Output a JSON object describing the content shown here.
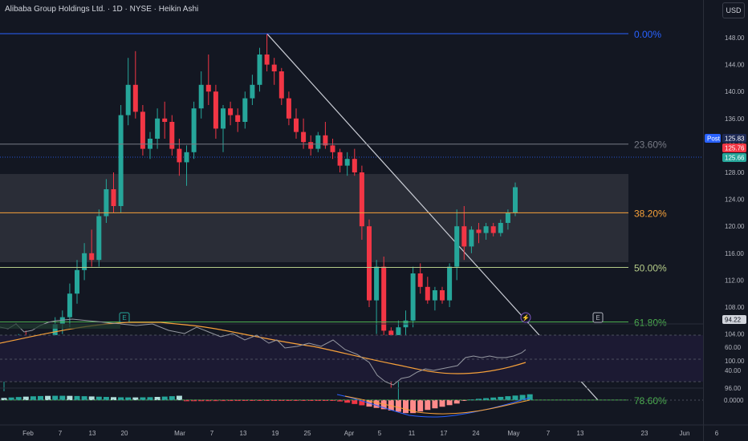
{
  "header": {
    "title": "Alibaba Group Holdings Ltd. · 1D · NYSE · Heikin Ashi",
    "currency": "USD"
  },
  "price_axis": {
    "ticks": [
      "148.00",
      "144.00",
      "140.00",
      "136.00",
      "132.00",
      "128.00",
      "124.00",
      "120.00",
      "116.00",
      "112.00",
      "108.00",
      "104.00",
      "100.00",
      "96.00"
    ],
    "badges": {
      "post_label": "Post",
      "post_value": "125.83",
      "last_value": "125.76",
      "close_value": "125.66",
      "low_value": "94.22"
    }
  },
  "fib_levels": [
    {
      "label": "0.00%",
      "price": 148.6,
      "color": "#2962ff"
    },
    {
      "label": "23.60%",
      "price": 132.2,
      "color": "#787b86"
    },
    {
      "label": "38.20%",
      "price": 122.0,
      "color": "#f7a13a"
    },
    {
      "label": "50.00%",
      "price": 113.9,
      "color": "#b5cc88"
    },
    {
      "label": "61.80%",
      "price": 105.8,
      "color": "#4caf50"
    },
    {
      "label": "78.60%",
      "price": 94.2,
      "color": "#4caf50"
    }
  ],
  "rsi_axis": {
    "ticks": [
      "60.00",
      "40.00"
    ]
  },
  "macd_axis": {
    "ticks": [
      "0.0000"
    ]
  },
  "time_axis": {
    "labels": [
      "Feb",
      "7",
      "13",
      "20",
      "Mar",
      "7",
      "13",
      "19",
      "25",
      "Apr",
      "5",
      "11",
      "17",
      "24",
      "May",
      "7",
      "13",
      "23",
      "Jun",
      "6"
    ]
  },
  "markers": {
    "earnings_1": "E",
    "earnings_2": "E"
  },
  "colors": {
    "up": "#26a69a",
    "down": "#f23645",
    "background": "#131722",
    "trendline": "#c9ccd4",
    "rsi_line": "#b2b5be",
    "rsi_ma": "#f7a13a"
  },
  "chart_data": {
    "type": "candlestick",
    "chart_style": "Heikin Ashi",
    "interval": "1D",
    "symbol": "Alibaba Group Holdings Ltd.",
    "exchange": "NYSE",
    "ylim": [
      92,
      150
    ],
    "candles": [
      [
        97.5,
        101.0,
        95.5,
        100.0
      ],
      [
        100.0,
        102.5,
        97.5,
        101.5
      ],
      [
        101.5,
        104.0,
        99.0,
        103.0
      ],
      [
        103.0,
        104.5,
        101.0,
        102.0
      ],
      [
        102.0,
        103.5,
        100.5,
        101.5
      ],
      [
        101.5,
        104.0,
        100.5,
        103.5
      ],
      [
        103.5,
        103.8,
        102.0,
        102.5
      ],
      [
        102.5,
        106.5,
        101.5,
        105.5
      ],
      [
        105.5,
        107.5,
        104.0,
        106.5
      ],
      [
        106.5,
        111.5,
        105.0,
        110.0
      ],
      [
        110.0,
        115.0,
        108.5,
        113.5
      ],
      [
        113.5,
        117.5,
        112.0,
        116.0
      ],
      [
        116.0,
        119.5,
        114.0,
        115.0
      ],
      [
        115.0,
        122.5,
        114.0,
        121.5
      ],
      [
        121.5,
        127.0,
        120.5,
        125.5
      ],
      [
        125.5,
        128.0,
        122.0,
        123.0
      ],
      [
        123.0,
        138.0,
        122.0,
        136.5
      ],
      [
        136.5,
        145.0,
        135.0,
        141.0
      ],
      [
        141.0,
        146.0,
        136.0,
        137.0
      ],
      [
        137.0,
        138.0,
        130.5,
        131.5
      ],
      [
        131.5,
        134.0,
        130.0,
        133.0
      ],
      [
        133.0,
        137.5,
        131.5,
        136.0
      ],
      [
        136.0,
        138.5,
        133.0,
        135.5
      ],
      [
        135.5,
        136.5,
        130.5,
        131.5
      ],
      [
        131.5,
        133.0,
        127.5,
        129.5
      ],
      [
        129.5,
        132.0,
        126.0,
        131.0
      ],
      [
        131.0,
        138.5,
        130.0,
        137.5
      ],
      [
        137.5,
        143.0,
        136.0,
        141.0
      ],
      [
        141.0,
        145.5,
        138.0,
        140.0
      ],
      [
        140.0,
        141.0,
        133.0,
        134.5
      ],
      [
        134.5,
        138.0,
        131.0,
        137.5
      ],
      [
        137.5,
        138.5,
        135.0,
        136.5
      ],
      [
        136.5,
        137.5,
        134.0,
        135.5
      ],
      [
        135.5,
        140.0,
        134.5,
        139.0
      ],
      [
        139.0,
        142.5,
        138.0,
        141.0
      ],
      [
        141.0,
        146.5,
        140.0,
        145.5
      ],
      [
        145.5,
        148.6,
        143.0,
        144.0
      ],
      [
        144.0,
        145.0,
        141.0,
        143.0
      ],
      [
        143.0,
        143.5,
        138.0,
        139.0
      ],
      [
        139.0,
        140.0,
        135.0,
        136.0
      ],
      [
        136.0,
        137.5,
        133.0,
        134.0
      ],
      [
        134.0,
        136.0,
        131.5,
        132.5
      ],
      [
        132.5,
        133.5,
        130.5,
        131.5
      ],
      [
        131.5,
        134.0,
        131.0,
        133.5
      ],
      [
        133.5,
        135.5,
        131.5,
        132.0
      ],
      [
        132.0,
        133.0,
        130.0,
        131.0
      ],
      [
        131.0,
        131.5,
        128.0,
        129.0
      ],
      [
        129.0,
        131.0,
        127.5,
        130.0
      ],
      [
        130.0,
        131.5,
        127.5,
        128.0
      ],
      [
        128.0,
        129.0,
        118.0,
        120.0
      ],
      [
        120.0,
        121.0,
        108.0,
        109.0
      ],
      [
        109.0,
        115.0,
        104.0,
        114.0
      ],
      [
        114.0,
        115.5,
        103.5,
        104.5
      ],
      [
        104.5,
        105.0,
        96.0,
        101.0
      ],
      [
        101.0,
        106.0,
        94.2,
        105.0
      ],
      [
        105.0,
        107.5,
        100.5,
        106.0
      ],
      [
        106.0,
        114.0,
        105.0,
        113.0
      ],
      [
        113.0,
        114.5,
        110.0,
        111.0
      ],
      [
        111.0,
        112.5,
        108.5,
        109.0
      ],
      [
        109.0,
        111.0,
        107.5,
        110.5
      ],
      [
        110.5,
        111.0,
        108.5,
        109.0
      ],
      [
        109.0,
        114.5,
        108.0,
        114.0
      ],
      [
        114.0,
        122.5,
        112.0,
        120.0
      ],
      [
        120.0,
        123.0,
        115.0,
        117.0
      ],
      [
        117.0,
        120.0,
        116.0,
        119.5
      ],
      [
        119.5,
        120.5,
        117.5,
        119.0
      ],
      [
        119.0,
        120.5,
        118.0,
        120.0
      ],
      [
        120.0,
        120.5,
        118.5,
        119.0
      ],
      [
        119.0,
        121.0,
        118.5,
        120.5
      ],
      [
        120.5,
        122.5,
        119.5,
        122.0
      ],
      [
        122.0,
        126.5,
        121.5,
        125.8
      ]
    ]
  }
}
